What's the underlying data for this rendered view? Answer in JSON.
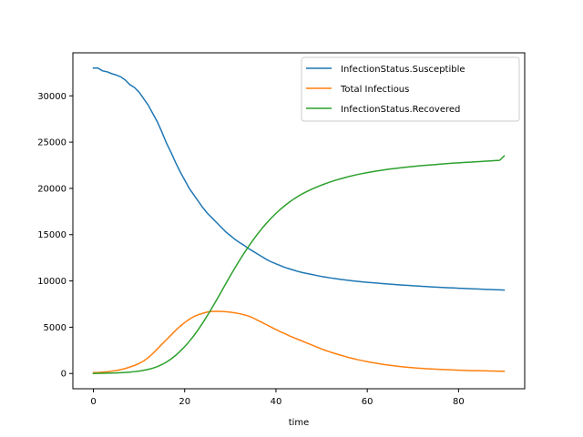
{
  "chart_data": {
    "type": "line",
    "title": "",
    "xlabel": "time",
    "ylabel": "",
    "xlim": [
      -4.5,
      94.5
    ],
    "ylim": [
      -1650,
      34650
    ],
    "xticks": [
      0,
      20,
      40,
      60,
      80
    ],
    "yticks": [
      0,
      5000,
      10000,
      15000,
      20000,
      25000,
      30000
    ],
    "grid": false,
    "legend_position": "upper right",
    "x": [
      0,
      1,
      2,
      3,
      4,
      5,
      6,
      7,
      8,
      9,
      10,
      11,
      12,
      13,
      14,
      15,
      16,
      17,
      18,
      19,
      20,
      21,
      22,
      23,
      24,
      25,
      26,
      27,
      28,
      29,
      30,
      31,
      32,
      33,
      34,
      35,
      36,
      37,
      38,
      39,
      40,
      41,
      42,
      43,
      44,
      45,
      46,
      47,
      48,
      49,
      50,
      51,
      52,
      53,
      54,
      55,
      56,
      57,
      58,
      59,
      60,
      61,
      62,
      63,
      64,
      65,
      66,
      67,
      68,
      69,
      70,
      71,
      72,
      73,
      74,
      75,
      76,
      77,
      78,
      79,
      80,
      81,
      82,
      83,
      84,
      85,
      86,
      87,
      88,
      89,
      90
    ],
    "series": [
      {
        "name": "InfectionStatus.Susceptible",
        "color": "#1f77b4",
        "values": [
          33000,
          33000,
          32700,
          32600,
          32400,
          32250,
          32050,
          31700,
          31200,
          30900,
          30400,
          29700,
          29000,
          28100,
          27200,
          26100,
          24900,
          23900,
          22800,
          21800,
          20900,
          20000,
          19300,
          18600,
          17900,
          17300,
          16800,
          16300,
          15800,
          15300,
          14900,
          14500,
          14150,
          13850,
          13500,
          13200,
          12900,
          12600,
          12300,
          12050,
          11850,
          11650,
          11450,
          11300,
          11150,
          11000,
          10880,
          10780,
          10680,
          10580,
          10480,
          10400,
          10320,
          10250,
          10180,
          10120,
          10060,
          10000,
          9950,
          9900,
          9850,
          9810,
          9770,
          9730,
          9690,
          9650,
          9610,
          9580,
          9540,
          9510,
          9480,
          9450,
          9420,
          9390,
          9360,
          9330,
          9310,
          9280,
          9260,
          9240,
          9210,
          9190,
          9170,
          9150,
          9130,
          9110,
          9090,
          9070,
          9050,
          9030,
          9010
        ]
      },
      {
        "name": "Total Infectious",
        "color": "#ff7f0e",
        "values": [
          100,
          110,
          140,
          180,
          250,
          320,
          420,
          540,
          700,
          870,
          1080,
          1350,
          1700,
          2150,
          2650,
          3150,
          3650,
          4150,
          4650,
          5100,
          5500,
          5850,
          6150,
          6350,
          6500,
          6650,
          6700,
          6720,
          6700,
          6680,
          6620,
          6550,
          6460,
          6350,
          6200,
          6000,
          5750,
          5500,
          5250,
          5000,
          4750,
          4500,
          4300,
          4050,
          3850,
          3650,
          3450,
          3250,
          3050,
          2850,
          2650,
          2470,
          2300,
          2150,
          2000,
          1860,
          1720,
          1600,
          1480,
          1380,
          1280,
          1190,
          1100,
          1020,
          950,
          880,
          820,
          760,
          710,
          660,
          620,
          580,
          550,
          520,
          490,
          460,
          440,
          420,
          400,
          380,
          360,
          340,
          320,
          310,
          300,
          290,
          280,
          270,
          260,
          250,
          240
        ]
      },
      {
        "name": "InfectionStatus.Recovered",
        "color": "#2ca02c",
        "values": [
          0,
          10,
          20,
          30,
          45,
          60,
          80,
          110,
          150,
          200,
          260,
          340,
          440,
          570,
          740,
          960,
          1230,
          1560,
          1950,
          2400,
          2900,
          3460,
          4080,
          4760,
          5500,
          6280,
          7100,
          7950,
          8820,
          9700,
          10560,
          11400,
          12210,
          12990,
          13730,
          14430,
          15090,
          15710,
          16280,
          16810,
          17300,
          17750,
          18160,
          18540,
          18880,
          19190,
          19470,
          19720,
          19950,
          20160,
          20360,
          20540,
          20710,
          20870,
          21010,
          21150,
          21280,
          21400,
          21510,
          21610,
          21700,
          21790,
          21870,
          21950,
          22020,
          22090,
          22150,
          22210,
          22270,
          22320,
          22370,
          22420,
          22460,
          22500,
          22540,
          22580,
          22620,
          22660,
          22700,
          22730,
          22760,
          22790,
          22820,
          22850,
          22880,
          22910,
          22940,
          22970,
          23000,
          23030,
          23500
        ]
      }
    ]
  }
}
